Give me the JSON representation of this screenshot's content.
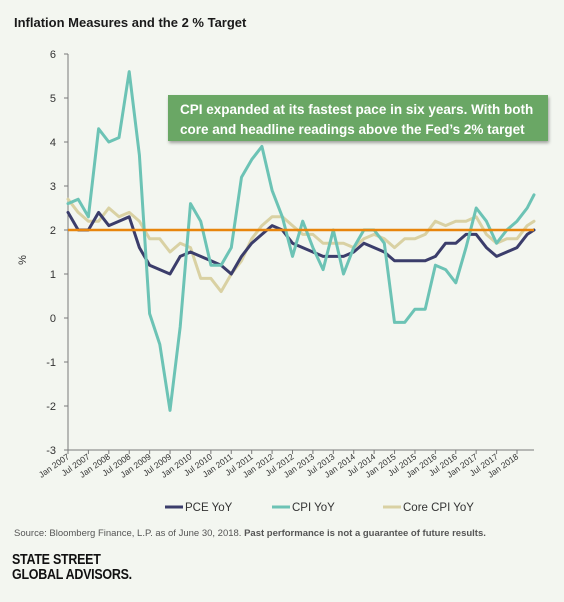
{
  "title": "Inflation Measures and the 2 % Target",
  "callout": {
    "line1": "CPI expanded at its fastest pace in six years. With both",
    "line2": "core and headline readings above the Fed’s 2% target"
  },
  "source": {
    "text": "Source: Bloomberg Finance, L.P. as of June 30, 2018. ",
    "bold": "Past performance is not a guarantee of future results."
  },
  "logo": {
    "line1": "STATE STREET",
    "line2": "GLOBAL ADVISORS."
  },
  "colors": {
    "pce": "#3b3d6b",
    "cpi": "#6cc3b5",
    "core": "#d9d1a3",
    "target": "#e8850c",
    "callout": "#6aa765"
  },
  "chart_data": {
    "type": "line",
    "title": "Inflation Measures and the 2 % Target",
    "xlabel": "",
    "ylabel": "%",
    "ylim": [
      -3,
      6
    ],
    "yticks": [
      "6",
      "5",
      "4",
      "3",
      "2",
      "1",
      "0",
      "-1",
      "-2",
      "-3"
    ],
    "xticks": [
      "Jan 2007",
      "Jul 2007",
      "Jan 2008",
      "Jul 2008",
      "Jan 2009",
      "Jul 2009",
      "Jan 2010",
      "Jul 2010",
      "Jan 2011",
      "Jul 2011",
      "Jan 2012",
      "Jul 2012",
      "Jan 2013",
      "Jul 2013",
      "Jan 2014",
      "Jul 2014",
      "Jan 2015",
      "Jul 2015",
      "Jan 2016",
      "Jul 2016",
      "Jan 2017",
      "Jul 2017",
      "Jan 2018"
    ],
    "target": 2.0,
    "grid": false,
    "legend_position": "bottom",
    "x": [
      "2007-01",
      "2007-04",
      "2007-07",
      "2007-10",
      "2008-01",
      "2008-04",
      "2008-07",
      "2008-10",
      "2009-01",
      "2009-04",
      "2009-07",
      "2009-10",
      "2010-01",
      "2010-04",
      "2010-07",
      "2010-10",
      "2011-01",
      "2011-04",
      "2011-07",
      "2011-10",
      "2012-01",
      "2012-04",
      "2012-07",
      "2012-10",
      "2013-01",
      "2013-04",
      "2013-07",
      "2013-10",
      "2014-01",
      "2014-04",
      "2014-07",
      "2014-10",
      "2015-01",
      "2015-04",
      "2015-07",
      "2015-10",
      "2016-01",
      "2016-04",
      "2016-07",
      "2016-10",
      "2017-01",
      "2017-04",
      "2017-07",
      "2017-10",
      "2018-01",
      "2018-04",
      "2018-06"
    ],
    "series": [
      {
        "name": "PCE YoY",
        "values": [
          2.4,
          2.0,
          2.0,
          2.4,
          2.1,
          2.2,
          2.3,
          1.6,
          1.2,
          1.1,
          1.0,
          1.4,
          1.5,
          1.4,
          1.3,
          1.2,
          1.0,
          1.4,
          1.7,
          1.9,
          2.1,
          2.0,
          1.7,
          1.6,
          1.5,
          1.4,
          1.4,
          1.4,
          1.5,
          1.7,
          1.6,
          1.5,
          1.3,
          1.3,
          1.3,
          1.3,
          1.4,
          1.7,
          1.7,
          1.9,
          1.9,
          1.6,
          1.4,
          1.5,
          1.6,
          1.9,
          2.0
        ]
      },
      {
        "name": "CPI YoY",
        "values": [
          2.6,
          2.7,
          2.3,
          4.3,
          4.0,
          4.1,
          5.6,
          3.7,
          0.1,
          -0.6,
          -2.1,
          -0.2,
          2.6,
          2.2,
          1.2,
          1.2,
          1.6,
          3.2,
          3.6,
          3.9,
          2.9,
          2.3,
          1.4,
          2.2,
          1.6,
          1.1,
          2.0,
          1.0,
          1.6,
          2.0,
          2.0,
          1.7,
          -0.1,
          -0.1,
          0.2,
          0.2,
          1.2,
          1.1,
          0.8,
          1.6,
          2.5,
          2.2,
          1.7,
          2.0,
          2.2,
          2.5,
          2.8
        ]
      },
      {
        "name": "Core CPI YoY",
        "values": [
          2.7,
          2.4,
          2.2,
          2.2,
          2.5,
          2.3,
          2.4,
          2.2,
          1.8,
          1.8,
          1.5,
          1.7,
          1.6,
          0.9,
          0.9,
          0.6,
          1.0,
          1.3,
          1.8,
          2.1,
          2.3,
          2.3,
          2.1,
          1.9,
          1.9,
          1.7,
          1.7,
          1.7,
          1.6,
          1.8,
          1.9,
          1.8,
          1.6,
          1.8,
          1.8,
          1.9,
          2.2,
          2.1,
          2.2,
          2.2,
          2.3,
          1.9,
          1.7,
          1.8,
          1.8,
          2.1,
          2.2
        ]
      }
    ]
  }
}
